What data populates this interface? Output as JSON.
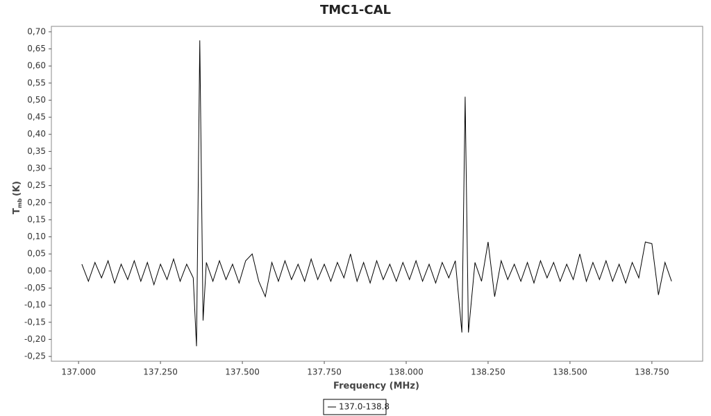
{
  "chart_data": {
    "type": "line",
    "title": "TMC1-CAL",
    "xlabel": "Frequency (MHz)",
    "ylabel": "T",
    "ylabel_sub": "mb",
    "ylabel_unit": "(K)",
    "xlim": [
      136.917,
      138.905
    ],
    "ylim": [
      -0.264,
      0.716
    ],
    "xticks": [
      {
        "value": 137,
        "label": "137.000"
      },
      {
        "value": 137.25,
        "label": "137.250"
      },
      {
        "value": 137.5,
        "label": "137.500"
      },
      {
        "value": 137.75,
        "label": "137.750"
      },
      {
        "value": 138,
        "label": "138.000"
      },
      {
        "value": 138.25,
        "label": "138.250"
      },
      {
        "value": 138.5,
        "label": "138.500"
      },
      {
        "value": 138.75,
        "label": "138.750"
      }
    ],
    "yticks": [
      {
        "value": 0.7,
        "label": "0,70"
      },
      {
        "value": 0.65,
        "label": "0,65"
      },
      {
        "value": 0.6,
        "label": "0,60"
      },
      {
        "value": 0.55,
        "label": "0,55"
      },
      {
        "value": 0.5,
        "label": "0,50"
      },
      {
        "value": 0.45,
        "label": "0,45"
      },
      {
        "value": 0.4,
        "label": "0,40"
      },
      {
        "value": 0.35,
        "label": "0,35"
      },
      {
        "value": 0.3,
        "label": "0,30"
      },
      {
        "value": 0.25,
        "label": "0,25"
      },
      {
        "value": 0.2,
        "label": "0,20"
      },
      {
        "value": 0.15,
        "label": "0,15"
      },
      {
        "value": 0.1,
        "label": "0,10"
      },
      {
        "value": 0.05,
        "label": "0,05"
      },
      {
        "value": 0,
        "label": "0,00"
      },
      {
        "value": -0.05,
        "label": "-0,05"
      },
      {
        "value": -0.1,
        "label": "-0,10"
      },
      {
        "value": -0.15,
        "label": "-0,15"
      },
      {
        "value": -0.2,
        "label": "-0,20"
      },
      {
        "value": -0.25,
        "label": "-0,25"
      }
    ],
    "grid": false,
    "legend": "bottom",
    "x": [
      137.01,
      137.03,
      137.05,
      137.07,
      137.09,
      137.11,
      137.13,
      137.15,
      137.17,
      137.19,
      137.21,
      137.23,
      137.25,
      137.27,
      137.29,
      137.31,
      137.33,
      137.35,
      137.36,
      137.37,
      137.38,
      137.39,
      137.41,
      137.43,
      137.45,
      137.47,
      137.49,
      137.51,
      137.53,
      137.55,
      137.57,
      137.59,
      137.61,
      137.63,
      137.65,
      137.67,
      137.69,
      137.71,
      137.73,
      137.75,
      137.77,
      137.79,
      137.81,
      137.83,
      137.85,
      137.87,
      137.89,
      137.91,
      137.93,
      137.95,
      137.97,
      137.99,
      138.01,
      138.03,
      138.05,
      138.07,
      138.09,
      138.11,
      138.13,
      138.15,
      138.17,
      138.18,
      138.19,
      138.21,
      138.23,
      138.25,
      138.27,
      138.29,
      138.31,
      138.33,
      138.35,
      138.37,
      138.39,
      138.41,
      138.43,
      138.45,
      138.47,
      138.49,
      138.51,
      138.53,
      138.55,
      138.57,
      138.59,
      138.61,
      138.63,
      138.65,
      138.67,
      138.69,
      138.71,
      138.73,
      138.75,
      138.77,
      138.79,
      138.81
    ],
    "series": [
      {
        "name": "137.0-138.8",
        "color": "#000000",
        "values": [
          0.02,
          -0.03,
          0.025,
          -0.02,
          0.03,
          -0.035,
          0.02,
          -0.025,
          0.03,
          -0.03,
          0.025,
          -0.04,
          0.02,
          -0.025,
          0.035,
          -0.03,
          0.02,
          -0.02,
          -0.22,
          0.675,
          -0.145,
          0.025,
          -0.03,
          0.03,
          -0.025,
          0.02,
          -0.035,
          0.03,
          0.05,
          -0.03,
          -0.075,
          0.025,
          -0.03,
          0.03,
          -0.025,
          0.02,
          -0.03,
          0.035,
          -0.025,
          0.02,
          -0.03,
          0.025,
          -0.02,
          0.05,
          -0.03,
          0.025,
          -0.035,
          0.03,
          -0.025,
          0.02,
          -0.03,
          0.025,
          -0.025,
          0.03,
          -0.03,
          0.02,
          -0.035,
          0.025,
          -0.02,
          0.03,
          -0.18,
          0.51,
          -0.18,
          0.025,
          -0.03,
          0.085,
          -0.075,
          0.03,
          -0.025,
          0.02,
          -0.03,
          0.025,
          -0.035,
          0.03,
          -0.02,
          0.025,
          -0.03,
          0.02,
          -0.025,
          0.05,
          -0.03,
          0.025,
          -0.025,
          0.03,
          -0.03,
          0.02,
          -0.035,
          0.025,
          -0.02,
          0.085,
          0.08,
          -0.07,
          0.025,
          -0.03
        ]
      }
    ]
  }
}
